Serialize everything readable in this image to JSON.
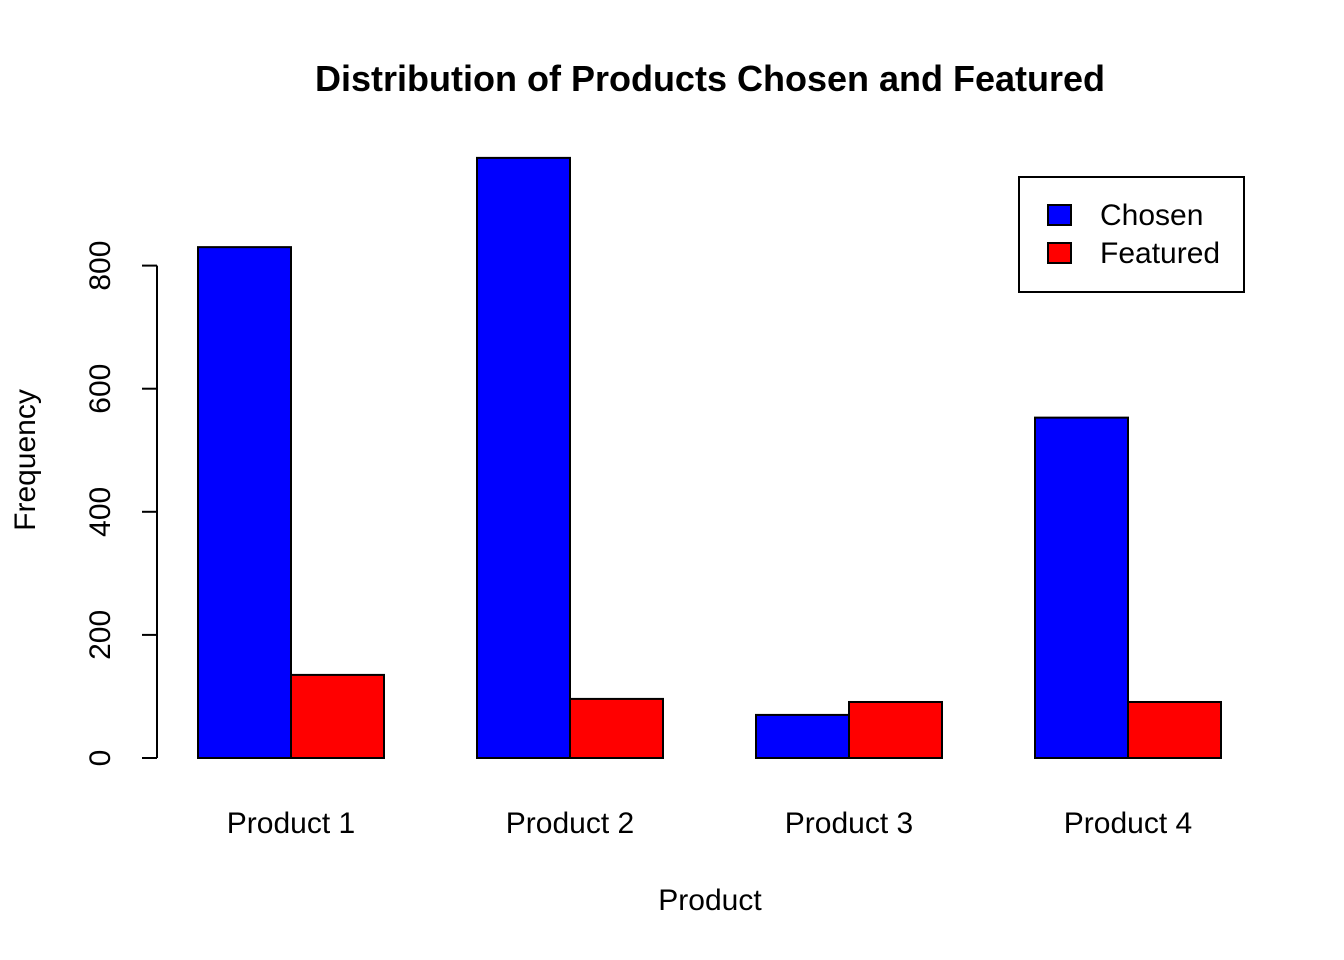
{
  "chart_data": {
    "type": "bar",
    "title": "Distribution of Products Chosen and Featured",
    "xlabel": "Product",
    "ylabel": "Frequency",
    "categories": [
      "Product 1",
      "Product 2",
      "Product 3",
      "Product 4"
    ],
    "series": [
      {
        "name": "Chosen",
        "color": "#0000ff",
        "values": [
          830,
          975,
          70,
          553
        ]
      },
      {
        "name": "Featured",
        "color": "#ff0000",
        "values": [
          135,
          96,
          91,
          91
        ]
      }
    ],
    "yticks": [
      "0",
      "200",
      "400",
      "600",
      "800"
    ],
    "ylim": [
      0,
      1000
    ],
    "grid": false,
    "legend_position": "top-right"
  }
}
